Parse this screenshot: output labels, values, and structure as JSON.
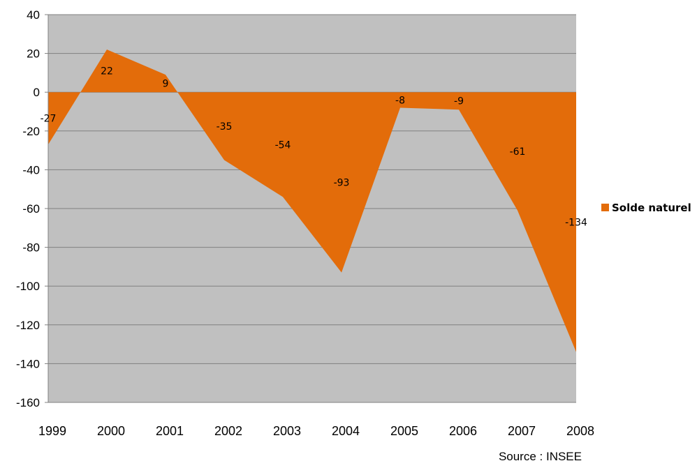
{
  "chart_data": {
    "type": "area",
    "categories": [
      "1999",
      "2000",
      "2001",
      "2002",
      "2003",
      "2004",
      "2005",
      "2006",
      "2007",
      "2008"
    ],
    "series": [
      {
        "name": "Solde naturel",
        "values": [
          -27,
          22,
          9,
          -35,
          -54,
          -93,
          -8,
          -9,
          -61,
          -134
        ],
        "color": "#E36C0A"
      }
    ],
    "data_labels": [
      "-27",
      "22",
      "9",
      "-35",
      "-54",
      "-93",
      "-8",
      "-9",
      "-61",
      "-134"
    ],
    "ylim": [
      -160,
      40
    ],
    "yticks": [
      40,
      20,
      0,
      -20,
      -40,
      -60,
      -80,
      -100,
      -120,
      -140,
      -160
    ],
    "ytick_labels": [
      "40",
      "20",
      "0",
      "-20",
      "-40",
      "-60",
      "-80",
      "-100",
      "-120",
      "-140",
      "-160"
    ],
    "grid": true,
    "plot_background": "#C0C0C0",
    "gridline_color": "#808080",
    "legend": {
      "position": "right",
      "label": "Solde naturel"
    },
    "xlabel": "",
    "ylabel": "",
    "title": ""
  },
  "source_note": "Source : INSEE"
}
